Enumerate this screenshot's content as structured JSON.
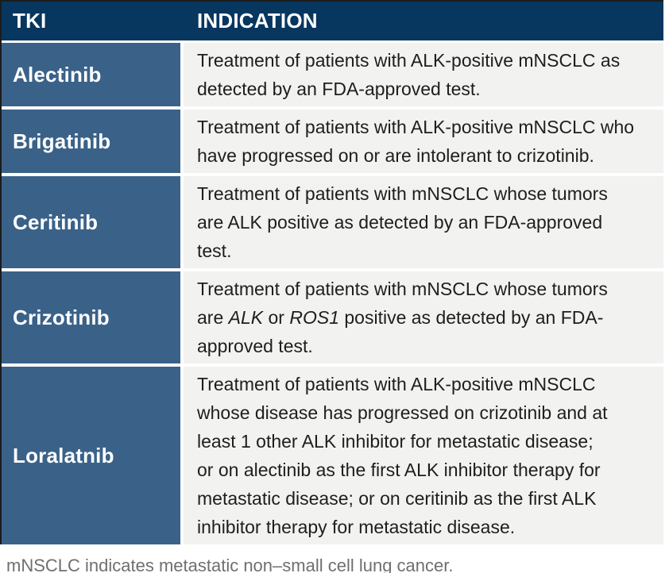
{
  "table": {
    "columns": [
      {
        "label": "TKI"
      },
      {
        "label": "INDICATION"
      }
    ],
    "rows": [
      {
        "tki": "Alectinib",
        "indication": [
          {
            "text": "Treatment of patients with ALK-positive mNSCLC as\ndetected by an FDA-approved test."
          }
        ]
      },
      {
        "tki": "Brigatinib",
        "indication": [
          {
            "text": "Treatment of patients with ALK-positive mNSCLC who\nhave progressed on or are intolerant to crizotinib."
          }
        ]
      },
      {
        "tki": "Ceritinib",
        "indication": [
          {
            "text": "Treatment of patients with mNSCLC whose tumors\nare ALK positive as detected by an FDA-approved\ntest."
          }
        ]
      },
      {
        "tki": "Crizotinib",
        "indication": [
          {
            "text": "Treatment of patients with mNSCLC whose tumors\nare "
          },
          {
            "text": "ALK",
            "italic": true
          },
          {
            "text": " or "
          },
          {
            "text": "ROS1",
            "italic": true
          },
          {
            "text": " positive as detected by an FDA-\napproved test."
          }
        ]
      },
      {
        "tki": "Loralatnib",
        "indication": [
          {
            "text": "Treatment of patients with ALK-positive mNSCLC\nwhose disease has progressed on crizotinib and at\nleast 1 other ALK inhibitor for metastatic disease;\nor on alectinib as the first ALK inhibitor therapy for\nmetastatic disease; or on ceritinib as the first ALK\ninhibitor therapy for metastatic disease."
          }
        ]
      }
    ]
  },
  "footnote": "mNSCLC indicates metastatic non–small cell lung cancer.",
  "colors": {
    "header_bg": "#07365F",
    "row_header_bg": "#3A6289",
    "cell_bg": "#F2F2F0",
    "header_text": "#FFFFFF",
    "body_text": "#1E1E1C",
    "footnote_text": "#6E6F71",
    "edge": "#1C1C1C"
  }
}
